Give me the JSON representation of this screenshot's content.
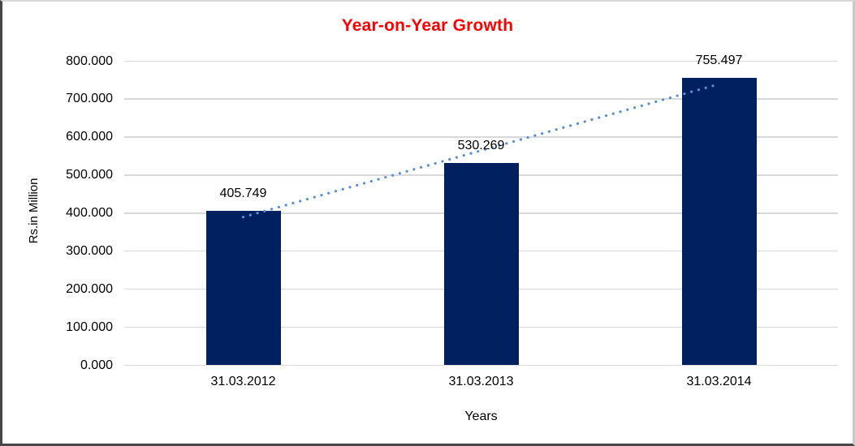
{
  "title": "Year-on-Year Growth",
  "chart_data": {
    "type": "bar",
    "title": "Year-on-Year Growth",
    "categories": [
      "31.03.2012",
      "31.03.2013",
      "31.03.2014"
    ],
    "values": [
      405.749,
      530.269,
      755.497
    ],
    "value_labels": [
      "405.749",
      "530.269",
      "755.497"
    ],
    "xlabel": "Years",
    "ylabel": "Rs.in Million",
    "ylim": [
      0,
      800
    ],
    "ytick_step": 100,
    "ytick_decimals": 3,
    "grid": true,
    "legend_position": "none",
    "trendline": {
      "type": "linear",
      "style": "dotted"
    },
    "colors": {
      "bar": "#002060",
      "trendline": "#5b8fd0",
      "gridline": "#d9d9d9",
      "title": "#ff0000",
      "axis_text": "#000000"
    }
  }
}
